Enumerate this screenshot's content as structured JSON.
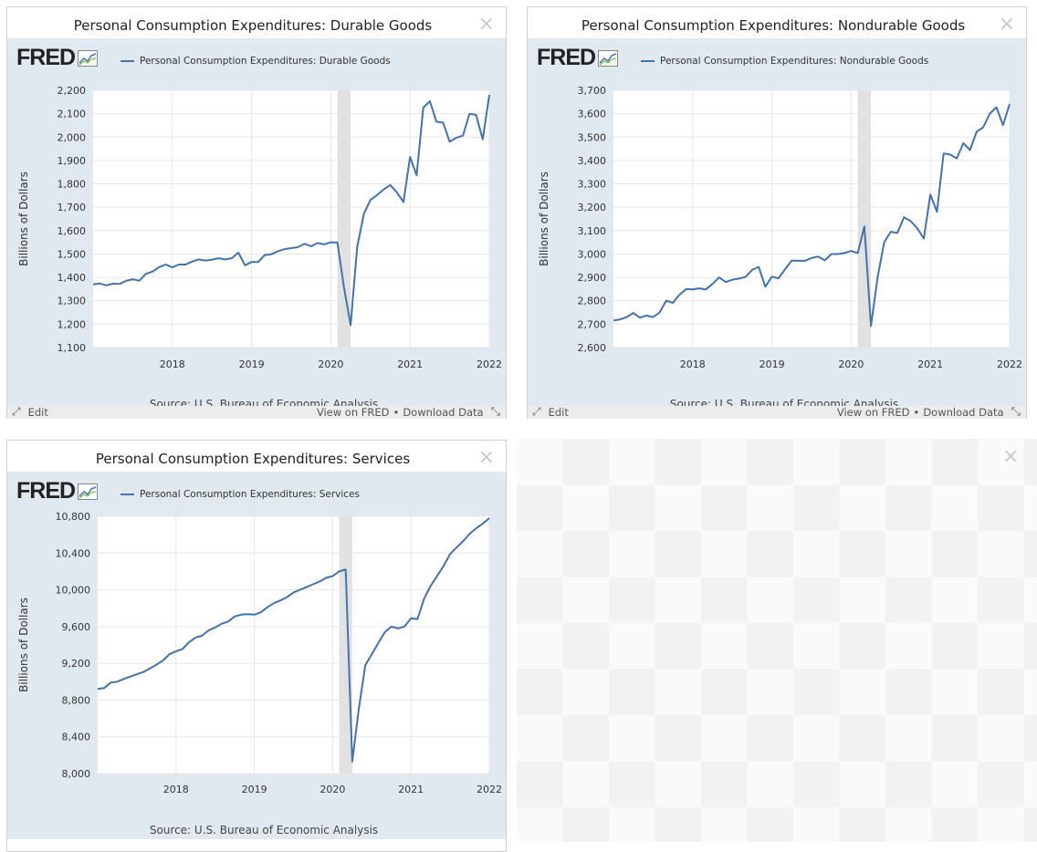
{
  "panels": [
    {
      "title": "Personal Consumption Expenditures: Durable Goods",
      "legend": "Personal Consumption Expenditures: Durable Goods",
      "source": "Source: U.S. Bureau of Economic Analysis",
      "edit_label": "Edit",
      "view_on_fred": "View on FRED",
      "download_data": "Download Data",
      "fred_logo_text": "FRED",
      "close_glyph": "×"
    },
    {
      "title": "Personal Consumption Expenditures: Nondurable Goods",
      "legend": "Personal Consumption Expenditures: Nondurable Goods",
      "source": "Source: U.S. Bureau of Economic Analysis",
      "edit_label": "Edit",
      "view_on_fred": "View on FRED",
      "download_data": "Download Data",
      "fred_logo_text": "FRED",
      "close_glyph": "×"
    },
    {
      "title": "Personal Consumption Expenditures: Services",
      "legend": "Personal Consumption Expenditures: Services",
      "source": "Source: U.S. Bureau of Economic Analysis",
      "edit_label": "Edit",
      "view_on_fred": "View on FRED",
      "download_data": "Download Data",
      "fred_logo_text": "FRED",
      "close_glyph": "×"
    }
  ],
  "empty_panel": {
    "close_glyph": "×"
  },
  "colors": {
    "series": "#4572a7",
    "chart_bg": "#e1e9f0",
    "recession": "#e1e1e1",
    "grid": "#e6e6e6"
  },
  "icons": {
    "edit": "pencil-arrows-icon",
    "resize": "resize-arrows-icon",
    "close": "close-icon",
    "fred_mini": "mini-chart-icon"
  },
  "chart_data": [
    {
      "type": "line",
      "title": "Personal Consumption Expenditures: Durable Goods",
      "ylabel": "Billions of Dollars",
      "ylim": [
        1100,
        2200
      ],
      "yticks": [
        1100,
        1200,
        1300,
        1400,
        1500,
        1600,
        1700,
        1800,
        1900,
        2000,
        2100,
        2200
      ],
      "ytick_labels": [
        "1,100",
        "1,200",
        "1,300",
        "1,400",
        "1,500",
        "1,600",
        "1,700",
        "1,800",
        "1,900",
        "2,000",
        "2,100",
        "2,200"
      ],
      "xlim": [
        2017.0,
        2022.0
      ],
      "xticks": [
        2018,
        2019,
        2020,
        2021,
        2022
      ],
      "xtick_labels": [
        "2018",
        "2019",
        "2020",
        "2021",
        "2022"
      ],
      "recession": [
        2020.083,
        2020.25
      ],
      "grid": true,
      "series": [
        {
          "name": "Personal Consumption Expenditures: Durable Goods",
          "x": [
            2017.0,
            2017.083,
            2017.167,
            2017.25,
            2017.333,
            2017.417,
            2017.5,
            2017.583,
            2017.667,
            2017.75,
            2017.833,
            2017.917,
            2018.0,
            2018.083,
            2018.167,
            2018.25,
            2018.333,
            2018.417,
            2018.5,
            2018.583,
            2018.667,
            2018.75,
            2018.833,
            2018.917,
            2019.0,
            2019.083,
            2019.167,
            2019.25,
            2019.333,
            2019.417,
            2019.5,
            2019.583,
            2019.667,
            2019.75,
            2019.833,
            2019.917,
            2020.0,
            2020.083,
            2020.167,
            2020.25,
            2020.333,
            2020.417,
            2020.5,
            2020.583,
            2020.667,
            2020.75,
            2020.833,
            2020.917,
            2021.0,
            2021.083,
            2021.167,
            2021.25,
            2021.333,
            2021.417,
            2021.5,
            2021.583,
            2021.667,
            2021.75,
            2021.833,
            2021.917,
            2022.0
          ],
          "y": [
            1370,
            1374,
            1366,
            1373,
            1372,
            1385,
            1392,
            1386,
            1415,
            1425,
            1444,
            1455,
            1443,
            1455,
            1455,
            1468,
            1477,
            1472,
            1476,
            1482,
            1477,
            1482,
            1506,
            1452,
            1466,
            1466,
            1496,
            1499,
            1512,
            1521,
            1525,
            1529,
            1544,
            1533,
            1547,
            1541,
            1550,
            1549,
            1355,
            1196,
            1530,
            1672,
            1731,
            1752,
            1776,
            1795,
            1764,
            1722,
            1915,
            1837,
            2126,
            2153,
            2066,
            2062,
            1980,
            1997,
            2006,
            2099,
            2095,
            1990,
            2180
          ]
        }
      ]
    },
    {
      "type": "line",
      "title": "Personal Consumption Expenditures: Nondurable Goods",
      "ylabel": "Billions of Dollars",
      "ylim": [
        2600,
        3700
      ],
      "yticks": [
        2600,
        2700,
        2800,
        2900,
        3000,
        3100,
        3200,
        3300,
        3400,
        3500,
        3600,
        3700
      ],
      "ytick_labels": [
        "2,600",
        "2,700",
        "2,800",
        "2,900",
        "3,000",
        "3,100",
        "3,200",
        "3,300",
        "3,400",
        "3,500",
        "3,600",
        "3,700"
      ],
      "xlim": [
        2017.0,
        2022.0
      ],
      "xticks": [
        2018,
        2019,
        2020,
        2021,
        2022
      ],
      "xtick_labels": [
        "2018",
        "2019",
        "2020",
        "2021",
        "2022"
      ],
      "recession": [
        2020.083,
        2020.25
      ],
      "grid": true,
      "series": [
        {
          "name": "Personal Consumption Expenditures: Nondurable Goods",
          "x": [
            2017.0,
            2017.083,
            2017.167,
            2017.25,
            2017.333,
            2017.417,
            2017.5,
            2017.583,
            2017.667,
            2017.75,
            2017.833,
            2017.917,
            2018.0,
            2018.083,
            2018.167,
            2018.25,
            2018.333,
            2018.417,
            2018.5,
            2018.583,
            2018.667,
            2018.75,
            2018.833,
            2018.917,
            2019.0,
            2019.083,
            2019.167,
            2019.25,
            2019.333,
            2019.417,
            2019.5,
            2019.583,
            2019.667,
            2019.75,
            2019.833,
            2019.917,
            2020.0,
            2020.083,
            2020.167,
            2020.25,
            2020.333,
            2020.417,
            2020.5,
            2020.583,
            2020.667,
            2020.75,
            2020.833,
            2020.917,
            2021.0,
            2021.083,
            2021.167,
            2021.25,
            2021.333,
            2021.417,
            2021.5,
            2021.583,
            2021.667,
            2021.75,
            2021.833,
            2021.917,
            2022.0
          ],
          "y": [
            2716,
            2720,
            2730,
            2748,
            2728,
            2737,
            2730,
            2750,
            2801,
            2791,
            2826,
            2850,
            2849,
            2853,
            2849,
            2872,
            2900,
            2880,
            2890,
            2895,
            2902,
            2932,
            2945,
            2860,
            2903,
            2896,
            2935,
            2972,
            2971,
            2971,
            2983,
            2989,
            2973,
            3000,
            3000,
            3004,
            3013,
            3004,
            3118,
            2692,
            2898,
            3050,
            3095,
            3090,
            3157,
            3141,
            3111,
            3066,
            3254,
            3181,
            3430,
            3425,
            3409,
            3474,
            3445,
            3522,
            3542,
            3600,
            3628,
            3551,
            3641
          ]
        }
      ]
    },
    {
      "type": "line",
      "title": "Personal Consumption Expenditures: Services",
      "ylabel": "Billions of Dollars",
      "ylim": [
        8000,
        10800
      ],
      "yticks": [
        8000,
        8400,
        8800,
        9200,
        9600,
        10000,
        10400,
        10800
      ],
      "ytick_labels": [
        "8,000",
        "8,400",
        "8,800",
        "9,200",
        "9,600",
        "10,000",
        "10,400",
        "10,800"
      ],
      "xlim": [
        2017.0,
        2022.0
      ],
      "xticks": [
        2018,
        2019,
        2020,
        2021,
        2022
      ],
      "xtick_labels": [
        "2018",
        "2019",
        "2020",
        "2021",
        "2022"
      ],
      "recession": [
        2020.083,
        2020.25
      ],
      "grid": true,
      "series": [
        {
          "name": "Personal Consumption Expenditures: Services",
          "x": [
            2017.0,
            2017.083,
            2017.167,
            2017.25,
            2017.333,
            2017.417,
            2017.5,
            2017.583,
            2017.667,
            2017.75,
            2017.833,
            2017.917,
            2018.0,
            2018.083,
            2018.167,
            2018.25,
            2018.333,
            2018.417,
            2018.5,
            2018.583,
            2018.667,
            2018.75,
            2018.833,
            2018.917,
            2019.0,
            2019.083,
            2019.167,
            2019.25,
            2019.333,
            2019.417,
            2019.5,
            2019.583,
            2019.667,
            2019.75,
            2019.833,
            2019.917,
            2020.0,
            2020.083,
            2020.167,
            2020.25,
            2020.333,
            2020.417,
            2020.5,
            2020.583,
            2020.667,
            2020.75,
            2020.833,
            2020.917,
            2021.0,
            2021.083,
            2021.167,
            2021.25,
            2021.333,
            2021.417,
            2021.5,
            2021.583,
            2021.667,
            2021.75,
            2021.833,
            2021.917,
            2022.0
          ],
          "y": [
            8920,
            8930,
            8990,
            9000,
            9030,
            9055,
            9080,
            9105,
            9145,
            9185,
            9230,
            9300,
            9330,
            9355,
            9430,
            9480,
            9500,
            9560,
            9590,
            9630,
            9655,
            9710,
            9730,
            9735,
            9730,
            9755,
            9810,
            9855,
            9885,
            9920,
            9970,
            10000,
            10030,
            10060,
            10090,
            10130,
            10150,
            10200,
            10220,
            8130,
            8700,
            9180,
            9300,
            9420,
            9540,
            9600,
            9580,
            9600,
            9690,
            9680,
            9900,
            10040,
            10150,
            10260,
            10390,
            10460,
            10530,
            10610,
            10670,
            10720,
            10780
          ]
        }
      ]
    }
  ]
}
